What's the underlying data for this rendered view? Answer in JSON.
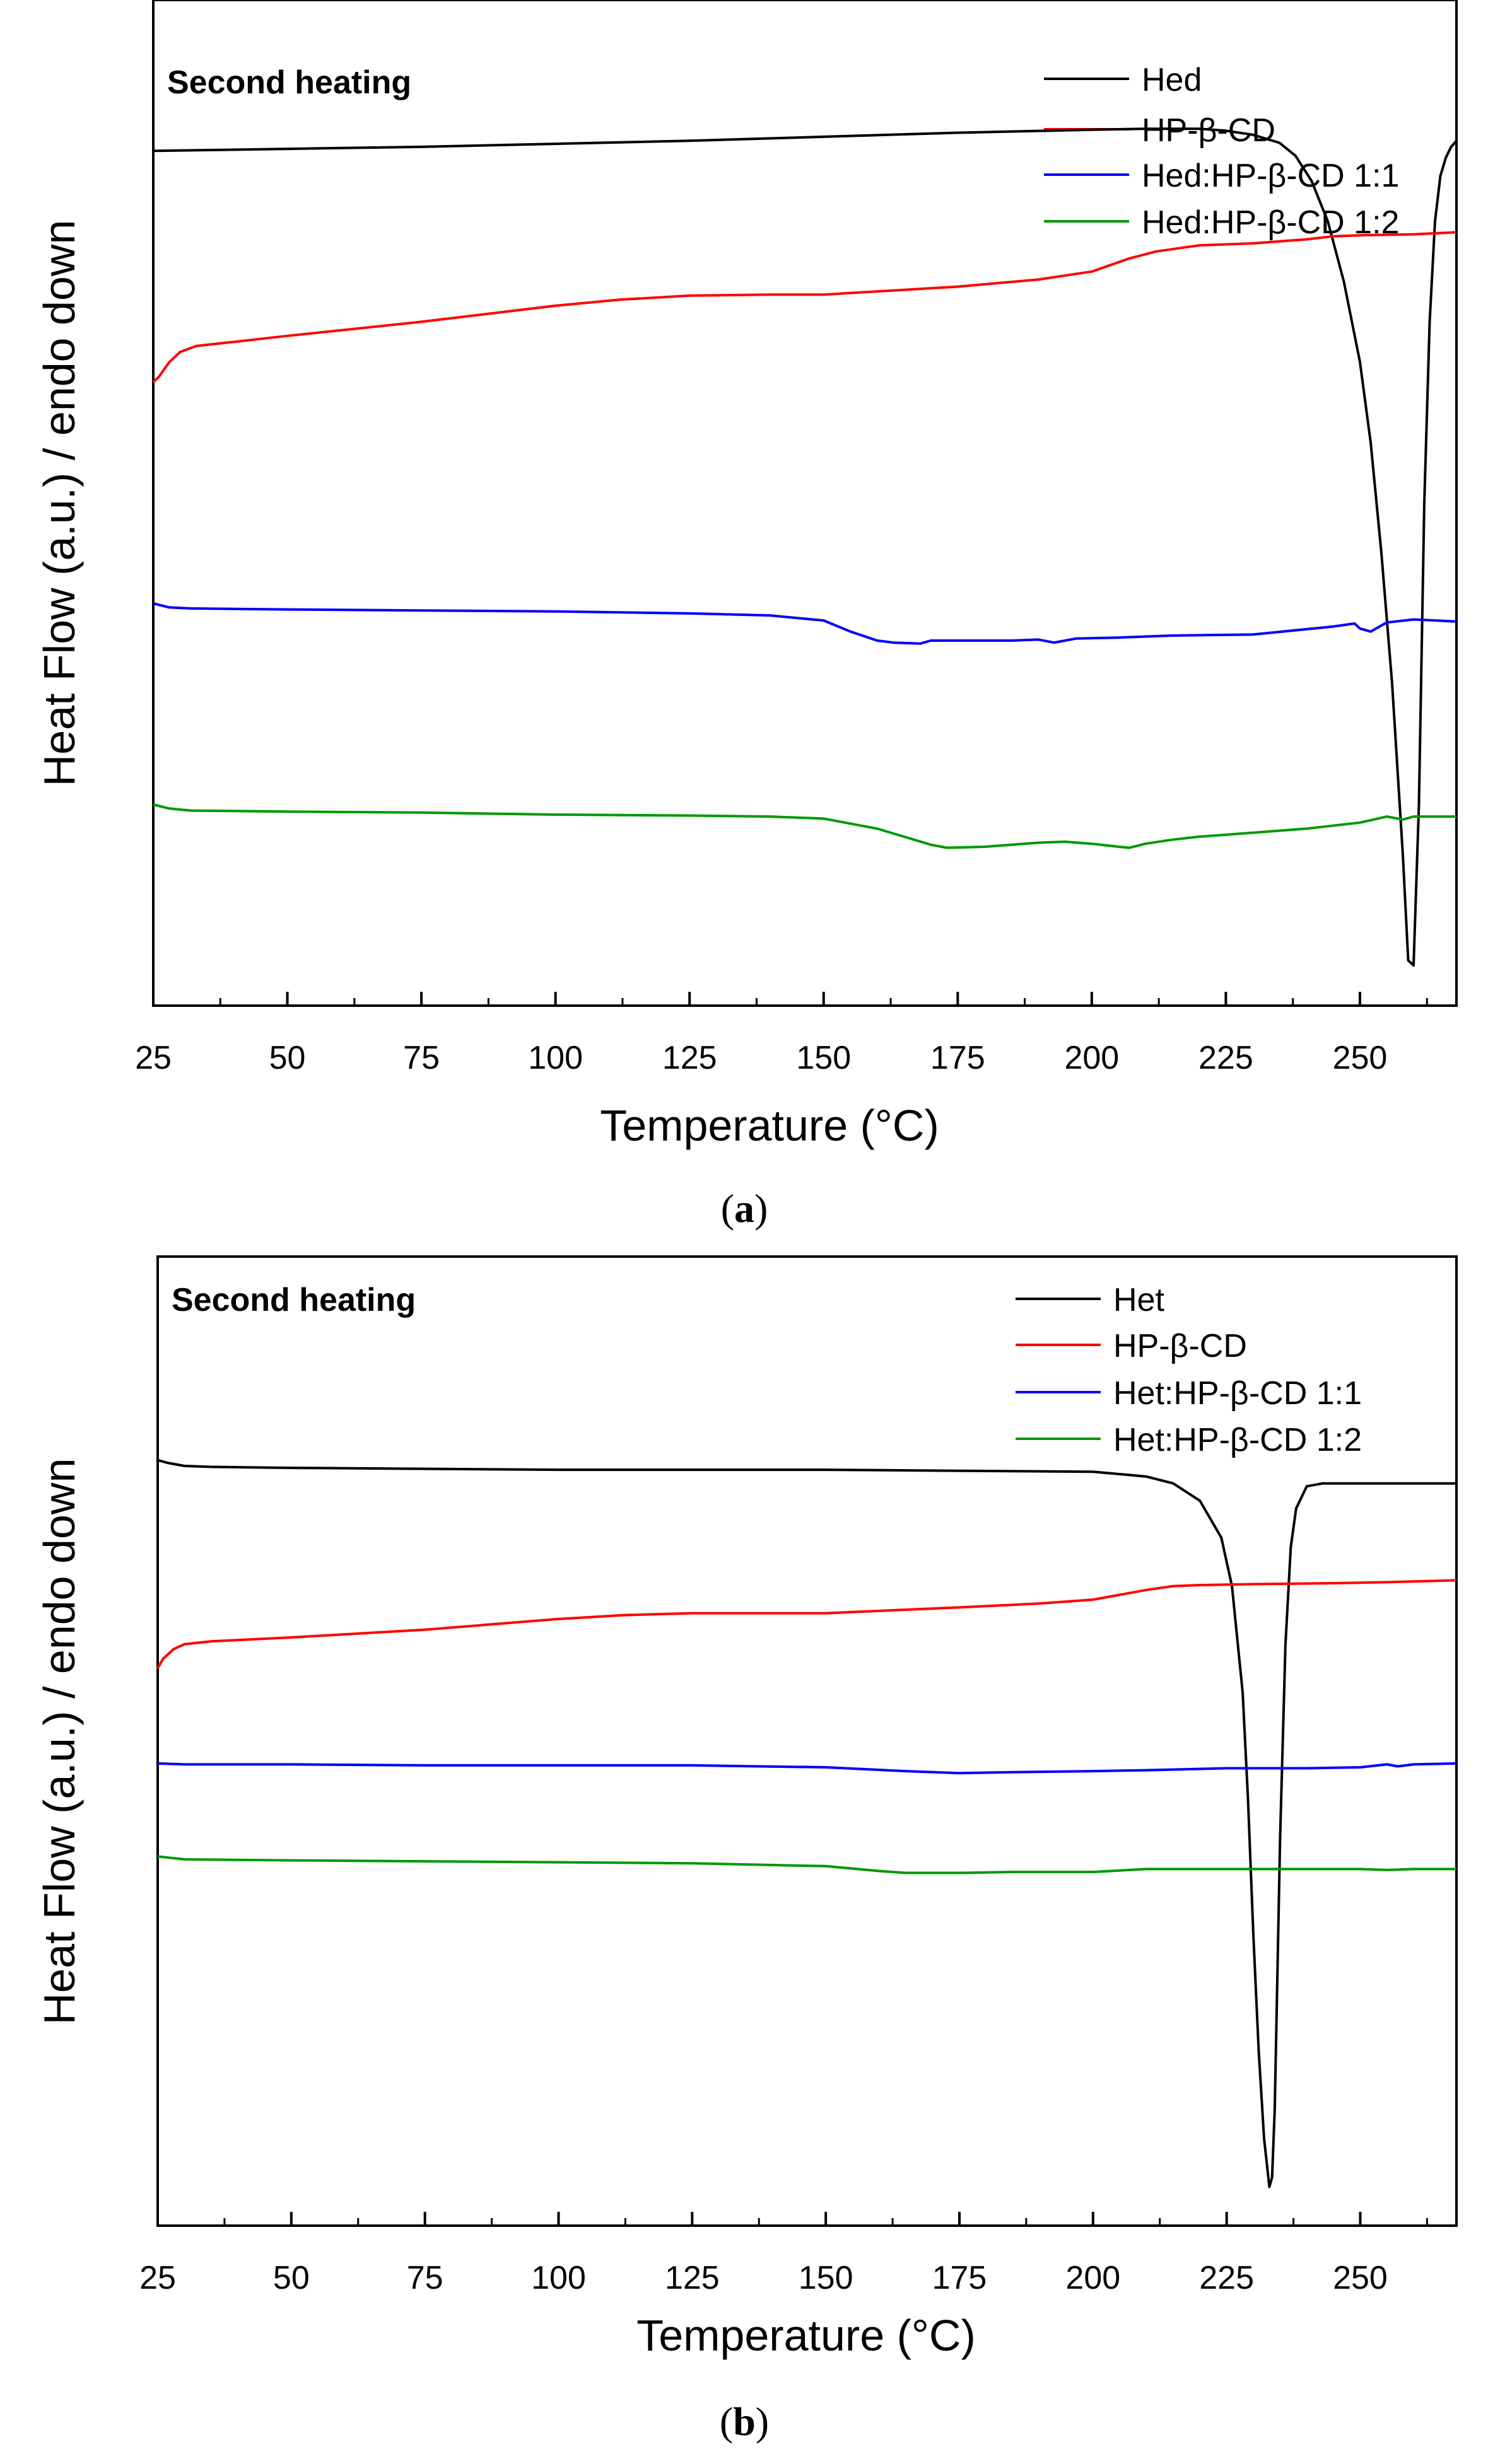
{
  "chart_data": [
    {
      "type": "line",
      "panel_label": "a",
      "title": "Second heating",
      "xlabel": "Temperature (°C)",
      "ylabel": "Heat Flow (a.u.) / endo down",
      "xlim": [
        25,
        268
      ],
      "ylim": [
        0,
        100
      ],
      "xticks": [
        25,
        50,
        75,
        100,
        125,
        150,
        175,
        200,
        225,
        250
      ],
      "yticks": [],
      "legend_position": "top-right",
      "series": [
        {
          "name": "Hed",
          "color": "#000000",
          "x": [
            25,
            50,
            75,
            100,
            125,
            150,
            175,
            200,
            210,
            220,
            225,
            230,
            235,
            238,
            241,
            244,
            247,
            250,
            252,
            254,
            256,
            258,
            259,
            260,
            261,
            262,
            263,
            264,
            265,
            266,
            267,
            268
          ],
          "y": [
            85.0,
            85.2,
            85.4,
            85.7,
            86.0,
            86.4,
            86.8,
            87.1,
            87.2,
            87.2,
            87.0,
            86.6,
            85.8,
            84.5,
            82.0,
            78.0,
            72.0,
            64.0,
            56.0,
            45.0,
            32.0,
            15.0,
            4.5,
            4.0,
            20.0,
            50.0,
            68.0,
            78.0,
            82.5,
            84.3,
            85.4,
            86.0
          ]
        },
        {
          "name": "HP-β-CD",
          "color": "#ff0000",
          "x": [
            25,
            26,
            28,
            30,
            33,
            40,
            50,
            75,
            100,
            112,
            125,
            140,
            150,
            175,
            190,
            200,
            207,
            212,
            220,
            230,
            240,
            245,
            250,
            260,
            268
          ],
          "y": [
            62.0,
            62.5,
            64.0,
            65.0,
            65.6,
            66.0,
            66.6,
            68.0,
            69.6,
            70.2,
            70.6,
            70.7,
            70.7,
            71.5,
            72.2,
            73.0,
            74.3,
            75.0,
            75.6,
            75.8,
            76.2,
            76.5,
            76.6,
            76.7,
            76.9
          ]
        },
        {
          "name": "Hed:HP-β-CD 1:1",
          "color": "#0000ff",
          "x": [
            25,
            28,
            32,
            50,
            75,
            100,
            125,
            140,
            150,
            155,
            160,
            163,
            168,
            170,
            175,
            185,
            190,
            193,
            197,
            205,
            215,
            230,
            245,
            249,
            250,
            252,
            255,
            260,
            268
          ],
          "y": [
            40.0,
            39.6,
            39.5,
            39.4,
            39.3,
            39.2,
            39.0,
            38.8,
            38.3,
            37.2,
            36.3,
            36.1,
            36.0,
            36.3,
            36.3,
            36.3,
            36.4,
            36.1,
            36.5,
            36.6,
            36.8,
            36.9,
            37.7,
            38.0,
            37.5,
            37.2,
            38.1,
            38.4,
            38.2
          ]
        },
        {
          "name": "Hed:HP-β-CD 1:2",
          "color": "#009900",
          "x": [
            25,
            28,
            32,
            50,
            75,
            100,
            125,
            140,
            150,
            160,
            165,
            170,
            173,
            180,
            190,
            195,
            200,
            205,
            207,
            210,
            215,
            220,
            230,
            240,
            250,
            255,
            258,
            260,
            268
          ],
          "y": [
            20.0,
            19.6,
            19.4,
            19.3,
            19.2,
            19.0,
            18.9,
            18.8,
            18.6,
            17.6,
            16.8,
            16.0,
            15.7,
            15.8,
            16.2,
            16.3,
            16.1,
            15.8,
            15.7,
            16.1,
            16.5,
            16.8,
            17.2,
            17.6,
            18.2,
            18.8,
            18.5,
            18.8,
            18.8
          ]
        }
      ]
    },
    {
      "type": "line",
      "panel_label": "b",
      "title": "Second heating",
      "xlabel": "Temperature (°C)",
      "ylabel": "Heat Flow (a.u.) / endo down",
      "xlim": [
        25,
        268
      ],
      "ylim": [
        0,
        100
      ],
      "xticks": [
        25,
        50,
        75,
        100,
        125,
        150,
        175,
        200,
        225,
        250
      ],
      "yticks": [],
      "legend_position": "top-right",
      "series": [
        {
          "name": "Het",
          "color": "#000000",
          "x": [
            25,
            27,
            30,
            35,
            50,
            75,
            100,
            125,
            150,
            175,
            200,
            210,
            215,
            220,
            224,
            226,
            228,
            229,
            230,
            231,
            232,
            233,
            233.5,
            234,
            235,
            236,
            237,
            238,
            240,
            243,
            250,
            268
          ],
          "y": [
            79.0,
            78.7,
            78.4,
            78.3,
            78.2,
            78.1,
            78.0,
            78.0,
            78.0,
            77.9,
            77.8,
            77.3,
            76.6,
            74.8,
            71.0,
            66.0,
            55.0,
            44.0,
            30.0,
            18.0,
            9.0,
            4.0,
            5.0,
            12.0,
            40.0,
            60.0,
            70.0,
            74.0,
            76.3,
            76.6,
            76.6,
            76.6
          ]
        },
        {
          "name": "HP-β-CD",
          "color": "#ff0000",
          "x": [
            25,
            26,
            28,
            30,
            35,
            50,
            75,
            100,
            112,
            125,
            140,
            150,
            175,
            190,
            200,
            205,
            210,
            215,
            220,
            230,
            245,
            255,
            268
          ],
          "y": [
            57.5,
            58.5,
            59.5,
            60.0,
            60.3,
            60.7,
            61.5,
            62.6,
            63.0,
            63.2,
            63.2,
            63.2,
            63.8,
            64.2,
            64.6,
            65.1,
            65.6,
            66.0,
            66.1,
            66.2,
            66.3,
            66.4,
            66.6
          ]
        },
        {
          "name": "Het:HP-β-CD 1:1",
          "color": "#0000ff",
          "x": [
            25,
            30,
            50,
            75,
            100,
            125,
            150,
            165,
            175,
            185,
            200,
            210,
            225,
            240,
            250,
            255,
            257,
            260,
            268
          ],
          "y": [
            47.7,
            47.6,
            47.6,
            47.5,
            47.5,
            47.5,
            47.3,
            46.9,
            46.7,
            46.8,
            46.9,
            47.0,
            47.2,
            47.2,
            47.3,
            47.6,
            47.4,
            47.6,
            47.7
          ]
        },
        {
          "name": "Het:HP-β-CD 1:2",
          "color": "#009900",
          "x": [
            25,
            30,
            50,
            75,
            100,
            125,
            150,
            160,
            165,
            175,
            185,
            200,
            210,
            225,
            240,
            250,
            255,
            260,
            268
          ],
          "y": [
            38.1,
            37.8,
            37.7,
            37.6,
            37.5,
            37.4,
            37.1,
            36.6,
            36.4,
            36.4,
            36.5,
            36.5,
            36.8,
            36.8,
            36.8,
            36.8,
            36.7,
            36.8,
            36.8
          ]
        }
      ]
    }
  ]
}
